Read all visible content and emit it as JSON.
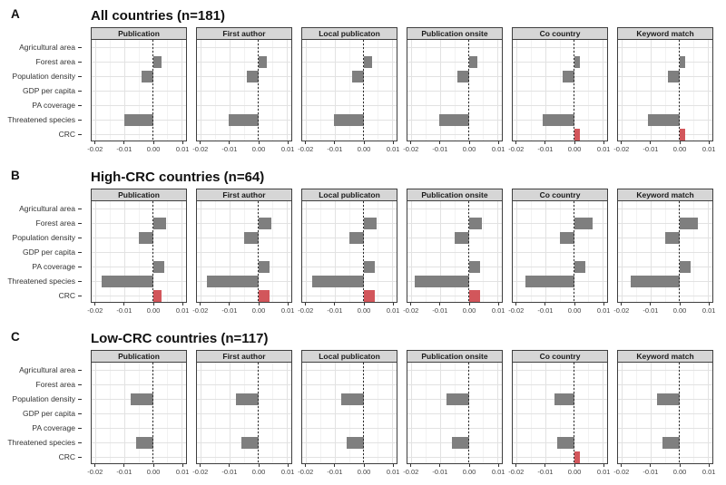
{
  "chart_data": {
    "type": "bar",
    "orientation": "horizontal",
    "categories": [
      "Agricultural area",
      "Forest area",
      "Population density",
      "GDP per capita",
      "PA coverage",
      "Threatened species",
      "CRC"
    ],
    "facet_columns": [
      "Publication",
      "First author",
      "Local publicaton",
      "Publication onsite",
      "Co country",
      "Keyword match"
    ],
    "x_tick_labels": [
      "-0.02",
      "-0.01",
      "0.00",
      "0.01"
    ],
    "x_tick_values": [
      -0.02,
      -0.01,
      0,
      0.01
    ],
    "minor_tick_values": [
      -0.015,
      -0.005,
      0.005
    ],
    "xlim": [
      -0.0215,
      0.0115
    ],
    "zero_line": 0,
    "grid": true,
    "legend": "none",
    "bar_color_default": "#7f7f7f",
    "bar_color_crc": "#d2565b",
    "rows": [
      {
        "panel_label": "A",
        "title": "All countries (n=181)",
        "panels": [
          {
            "facet": "Publication",
            "values": [
              0,
              0.003,
              -0.004,
              0,
              0,
              -0.01,
              0
            ]
          },
          {
            "facet": "First author",
            "values": [
              0,
              0.003,
              -0.004,
              0,
              0,
              -0.0105,
              0
            ]
          },
          {
            "facet": "Local publicaton",
            "values": [
              0,
              0.003,
              -0.004,
              0,
              0,
              -0.0105,
              0
            ]
          },
          {
            "facet": "Publication onsite",
            "values": [
              0,
              0.003,
              -0.004,
              0,
              0,
              -0.0105,
              0
            ]
          },
          {
            "facet": "Co country",
            "values": [
              0,
              0.002,
              -0.004,
              0,
              0,
              -0.011,
              0.002
            ]
          },
          {
            "facet": "Keyword match",
            "values": [
              0,
              0.002,
              -0.004,
              0,
              0,
              -0.011,
              0.002
            ]
          }
        ]
      },
      {
        "panel_label": "B",
        "title": "High-CRC countries (n=64)",
        "panels": [
          {
            "facet": "Publication",
            "values": [
              0,
              0.0045,
              -0.005,
              0,
              0.004,
              -0.018,
              0.003
            ]
          },
          {
            "facet": "First author",
            "values": [
              0,
              0.0045,
              -0.005,
              0,
              0.004,
              -0.018,
              0.004
            ]
          },
          {
            "facet": "Local publicaton",
            "values": [
              0,
              0.0045,
              -0.005,
              0,
              0.004,
              -0.018,
              0.004
            ]
          },
          {
            "facet": "Publication onsite",
            "values": [
              0,
              0.0045,
              -0.005,
              0,
              0.004,
              -0.019,
              0.004
            ]
          },
          {
            "facet": "Co country",
            "values": [
              0,
              0.0065,
              -0.005,
              0,
              0.004,
              -0.017,
              0
            ]
          },
          {
            "facet": "Keyword match",
            "values": [
              0,
              0.0065,
              -0.005,
              0,
              0.004,
              -0.017,
              0
            ]
          }
        ]
      },
      {
        "panel_label": "C",
        "title": "Low-CRC countries (n=117)",
        "panels": [
          {
            "facet": "Publication",
            "values": [
              0,
              0,
              -0.008,
              0,
              0,
              -0.006,
              0
            ]
          },
          {
            "facet": "First author",
            "values": [
              0,
              0,
              -0.008,
              0,
              0,
              -0.006,
              0
            ]
          },
          {
            "facet": "Local publicaton",
            "values": [
              0,
              0,
              -0.008,
              0,
              0,
              -0.006,
              0
            ]
          },
          {
            "facet": "Publication onsite",
            "values": [
              0,
              0,
              -0.008,
              0,
              0,
              -0.006,
              0
            ]
          },
          {
            "facet": "Co country",
            "values": [
              0,
              0,
              -0.007,
              0,
              0,
              -0.006,
              0.002
            ]
          },
          {
            "facet": "Keyword match",
            "values": [
              0,
              0,
              -0.008,
              0,
              0,
              -0.006,
              0
            ]
          }
        ]
      }
    ]
  }
}
